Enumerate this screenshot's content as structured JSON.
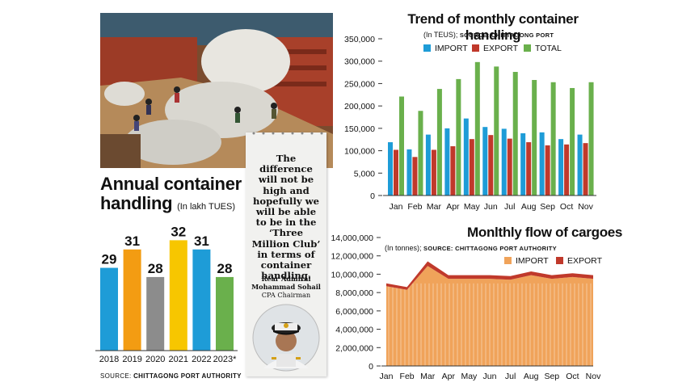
{
  "colors": {
    "import": "#1e9cd7",
    "export": "#c0392b",
    "total": "#6ab04c",
    "annual": [
      "#1e9cd7",
      "#f39c12",
      "#8c8c8c",
      "#f7c600",
      "#1e9cd7",
      "#6ab04c"
    ],
    "cargo_fill": "#f0a35a",
    "cargo_line": "#c0392b"
  },
  "annual": {
    "title": "Annual container handling",
    "title_line1": "Annual container",
    "title_line2": "handling",
    "subtitle": "(In lakh TUES)",
    "source_label": "SOURCE:",
    "source": "CHITTAGONG PORT AUTHORITY"
  },
  "quote": {
    "text": "The difference will not be high and hopefully we will be able to be in the ‘Three Million Club’ in terms of container handling.",
    "name_line1": "Rear Admiral",
    "name_line2": "Mohammad Sohail",
    "role": "CPA Chairman"
  },
  "monthly": {
    "title": "Trend of monthly container handling",
    "subtitle": "(In TEUS);",
    "source": "SOURCE: CHITTAGONG PORT",
    "legend": [
      "IMPORT",
      "EXPORT",
      "TOTAL"
    ]
  },
  "cargo": {
    "title": "Monlthly flow of cargoes",
    "subtitle": "(In tonnes);",
    "source": "SOURCE: CHITTAGONG PORT AUTHORITY",
    "legend": [
      "IMPORT",
      "EXPORT"
    ]
  },
  "chart_data": [
    {
      "type": "bar",
      "title": "Annual container handling",
      "ylabel": "In lakh TUES",
      "categories": [
        "2018",
        "2019",
        "2020",
        "2021",
        "2022",
        "2023*"
      ],
      "values": [
        29,
        31,
        28,
        32,
        31,
        28
      ],
      "ylim": [
        20,
        33
      ]
    },
    {
      "type": "bar",
      "title": "Trend of monthly container handling",
      "ylabel": "In TEUS",
      "categories": [
        "Jan",
        "Feb",
        "Mar",
        "Apr",
        "May",
        "Jun",
        "Jul",
        "Aug",
        "Sep",
        "Oct",
        "Nov"
      ],
      "yticks": [
        "0",
        "5,000",
        "100,000",
        "150,000",
        "200,000",
        "250,000",
        "300,000",
        "350,000"
      ],
      "ylim": [
        0,
        350000
      ],
      "series": [
        {
          "name": "IMPORT",
          "values": [
            119000,
            103000,
            136000,
            150000,
            172000,
            153000,
            149000,
            139000,
            141000,
            126000,
            136000
          ]
        },
        {
          "name": "EXPORT",
          "values": [
            102000,
            86000,
            102000,
            110000,
            126000,
            135000,
            127000,
            119000,
            112000,
            114000,
            117000
          ]
        },
        {
          "name": "TOTAL",
          "values": [
            221000,
            189000,
            238000,
            260000,
            298000,
            288000,
            276000,
            258000,
            253000,
            240000,
            253000
          ]
        }
      ]
    },
    {
      "type": "area",
      "title": "Monlthly flow of cargoes",
      "ylabel": "In tonnes",
      "categories": [
        "Jan",
        "Feb",
        "Mar",
        "Apr",
        "May",
        "Jun",
        "Jul",
        "Aug",
        "Sep",
        "Oct",
        "Nov"
      ],
      "yticks": [
        "0",
        "2,000,000",
        "4,000,000",
        "6,000,000",
        "8,000,000",
        "10,000,000",
        "12,000,000",
        "14,000,000"
      ],
      "ylim": [
        0,
        14000000
      ],
      "series": [
        {
          "name": "IMPORT",
          "values": [
            8700000,
            8300000,
            10900000,
            9500000,
            9500000,
            9500000,
            9400000,
            9900000,
            9500000,
            9700000,
            9500000
          ]
        },
        {
          "name": "EXPORT",
          "values": [
            300000,
            300000,
            500000,
            400000,
            400000,
            400000,
            400000,
            400000,
            400000,
            400000,
            400000
          ]
        }
      ]
    }
  ]
}
